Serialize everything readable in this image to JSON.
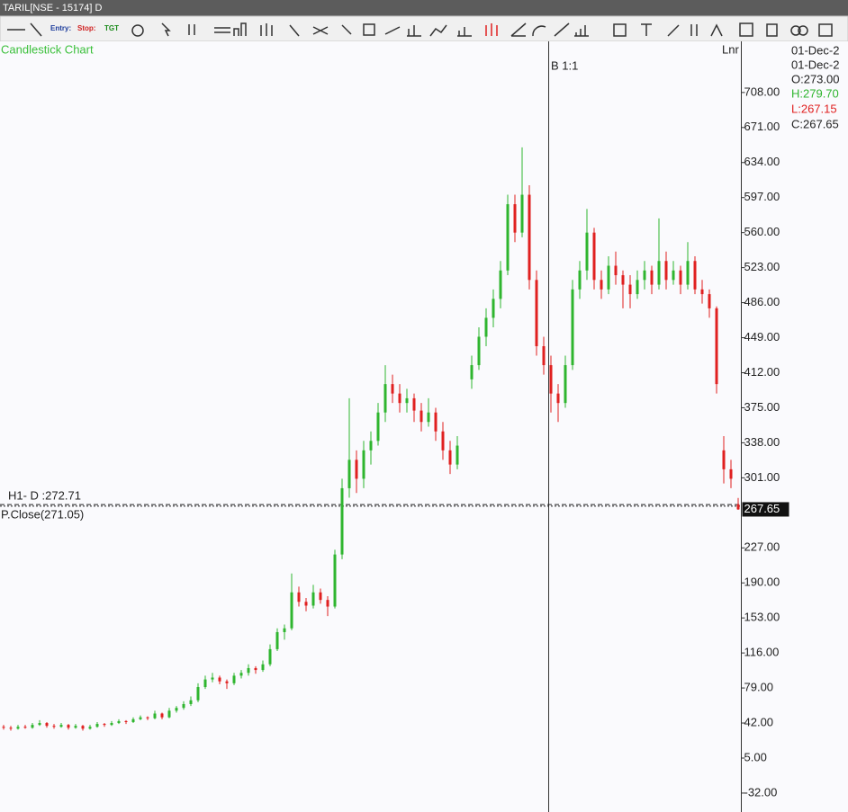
{
  "window": {
    "title": "TARIL[NSE - 15174] D"
  },
  "toolbar": {
    "buttons": [
      "Entry:",
      "Stop:",
      "TGT"
    ]
  },
  "chart_data": {
    "type": "candlestick",
    "title": "Candlestick Chart",
    "crosshair_label": "B 1:1",
    "scale_mode": "Lnr",
    "up_color": "#2fb52f",
    "down_color": "#e02020",
    "candles": [
      [
        38,
        40,
        35,
        37
      ],
      [
        37,
        39,
        34,
        36
      ],
      [
        36,
        40,
        35,
        38
      ],
      [
        38,
        40,
        36,
        37
      ],
      [
        37,
        42,
        36,
        40
      ],
      [
        40,
        45,
        39,
        42
      ],
      [
        42,
        43,
        37,
        39
      ],
      [
        39,
        41,
        36,
        38
      ],
      [
        38,
        42,
        37,
        40
      ],
      [
        40,
        41,
        35,
        37
      ],
      [
        37,
        41,
        36,
        39
      ],
      [
        39,
        40,
        34,
        36
      ],
      [
        36,
        40,
        35,
        38
      ],
      [
        38,
        43,
        37,
        41
      ],
      [
        41,
        42,
        38,
        40
      ],
      [
        40,
        44,
        39,
        42
      ],
      [
        42,
        46,
        41,
        44
      ],
      [
        44,
        45,
        41,
        43
      ],
      [
        43,
        48,
        42,
        46
      ],
      [
        46,
        50,
        45,
        48
      ],
      [
        48,
        49,
        45,
        47
      ],
      [
        47,
        55,
        46,
        52
      ],
      [
        52,
        53,
        46,
        48
      ],
      [
        48,
        58,
        47,
        55
      ],
      [
        55,
        60,
        53,
        58
      ],
      [
        58,
        65,
        56,
        62
      ],
      [
        62,
        70,
        60,
        66
      ],
      [
        66,
        84,
        64,
        80
      ],
      [
        80,
        92,
        78,
        88
      ],
      [
        88,
        95,
        85,
        90
      ],
      [
        90,
        92,
        83,
        86
      ],
      [
        86,
        88,
        78,
        84
      ],
      [
        84,
        95,
        82,
        92
      ],
      [
        92,
        98,
        89,
        95
      ],
      [
        95,
        104,
        92,
        100
      ],
      [
        100,
        102,
        94,
        98
      ],
      [
        98,
        108,
        96,
        104
      ],
      [
        104,
        125,
        102,
        120
      ],
      [
        120,
        142,
        118,
        138
      ],
      [
        138,
        146,
        130,
        142
      ],
      [
        142,
        200,
        140,
        180
      ],
      [
        180,
        186,
        165,
        170
      ],
      [
        170,
        174,
        160,
        166
      ],
      [
        166,
        188,
        163,
        180
      ],
      [
        180,
        184,
        168,
        172
      ],
      [
        172,
        176,
        155,
        165
      ],
      [
        165,
        225,
        163,
        220
      ],
      [
        220,
        300,
        215,
        290
      ],
      [
        290,
        385,
        280,
        320
      ],
      [
        320,
        330,
        285,
        300
      ],
      [
        300,
        340,
        290,
        330
      ],
      [
        330,
        350,
        315,
        340
      ],
      [
        340,
        380,
        335,
        370
      ],
      [
        370,
        420,
        360,
        400
      ],
      [
        400,
        410,
        380,
        390
      ],
      [
        390,
        400,
        370,
        380
      ],
      [
        380,
        395,
        370,
        385
      ],
      [
        385,
        390,
        360,
        372
      ],
      [
        372,
        380,
        350,
        360
      ],
      [
        360,
        385,
        355,
        370
      ],
      [
        370,
        375,
        340,
        350
      ],
      [
        350,
        360,
        320,
        330
      ],
      [
        330,
        340,
        305,
        315
      ],
      [
        315,
        345,
        310,
        335
      ],
      null,
      [
        405,
        430,
        395,
        420
      ],
      [
        420,
        460,
        415,
        450
      ],
      [
        450,
        480,
        440,
        470
      ],
      [
        470,
        500,
        460,
        490
      ],
      [
        490,
        530,
        480,
        520
      ],
      [
        520,
        600,
        515,
        590
      ],
      [
        590,
        600,
        550,
        560
      ],
      [
        560,
        650,
        555,
        600
      ],
      [
        600,
        610,
        500,
        510
      ],
      [
        510,
        520,
        430,
        440
      ],
      [
        440,
        450,
        410,
        420
      ],
      [
        420,
        430,
        370,
        390
      ],
      [
        390,
        400,
        360,
        380
      ],
      [
        380,
        430,
        375,
        420
      ],
      [
        420,
        510,
        415,
        500
      ],
      [
        500,
        530,
        490,
        520
      ],
      [
        520,
        585,
        510,
        560
      ],
      [
        560,
        565,
        500,
        510
      ],
      [
        510,
        520,
        490,
        500
      ],
      [
        500,
        535,
        495,
        525
      ],
      [
        525,
        540,
        505,
        515
      ],
      [
        515,
        520,
        480,
        505
      ],
      [
        505,
        515,
        480,
        495
      ],
      [
        495,
        520,
        490,
        510
      ],
      [
        510,
        530,
        500,
        520
      ],
      [
        520,
        525,
        495,
        505
      ],
      [
        505,
        575,
        500,
        530
      ],
      [
        530,
        540,
        500,
        510
      ],
      [
        510,
        530,
        505,
        520
      ],
      [
        520,
        525,
        495,
        505
      ],
      [
        505,
        550,
        500,
        530
      ],
      [
        530,
        535,
        495,
        500
      ],
      [
        500,
        510,
        485,
        495
      ],
      [
        495,
        500,
        470,
        480
      ],
      [
        480,
        482,
        390,
        400
      ],
      [
        330,
        345,
        295,
        310
      ],
      [
        310,
        320,
        290,
        300
      ],
      [
        273,
        279.7,
        267.15,
        267.65
      ]
    ],
    "ylim": [
      -52,
      762
    ],
    "yticks": [
      {
        "value": 708,
        "label": "708.00"
      },
      {
        "value": 671,
        "label": "671.00"
      },
      {
        "value": 634,
        "label": "634.00"
      },
      {
        "value": 597,
        "label": "597.00"
      },
      {
        "value": 560,
        "label": "560.00"
      },
      {
        "value": 523,
        "label": "523.00"
      },
      {
        "value": 486,
        "label": "486.00"
      },
      {
        "value": 449,
        "label": "449.00"
      },
      {
        "value": 412,
        "label": "412.00"
      },
      {
        "value": 375,
        "label": "375.00"
      },
      {
        "value": 338,
        "label": "338.00"
      },
      {
        "value": 301,
        "label": "301.00"
      },
      {
        "value": 227,
        "label": "227.00"
      },
      {
        "value": 190,
        "label": "190.00"
      },
      {
        "value": 153,
        "label": "153.00"
      },
      {
        "value": 116,
        "label": "116.00"
      },
      {
        "value": 79,
        "label": "79.00"
      },
      {
        "value": 42,
        "label": "42.00"
      },
      {
        "value": 5,
        "label": "5.00"
      },
      {
        "value": -32,
        "label": "-32.00"
      }
    ],
    "last_price": 267.65,
    "lines": [
      {
        "label": "H1- D :272.71",
        "value": 272.71
      },
      {
        "label": "P.Close(271.05)",
        "value": 271.05
      }
    ]
  },
  "info_panel": [
    "01-Dec-2",
    "01-Dec-2",
    "O:273.00",
    "H:279.70",
    "L:267.15",
    "C:267.65"
  ]
}
